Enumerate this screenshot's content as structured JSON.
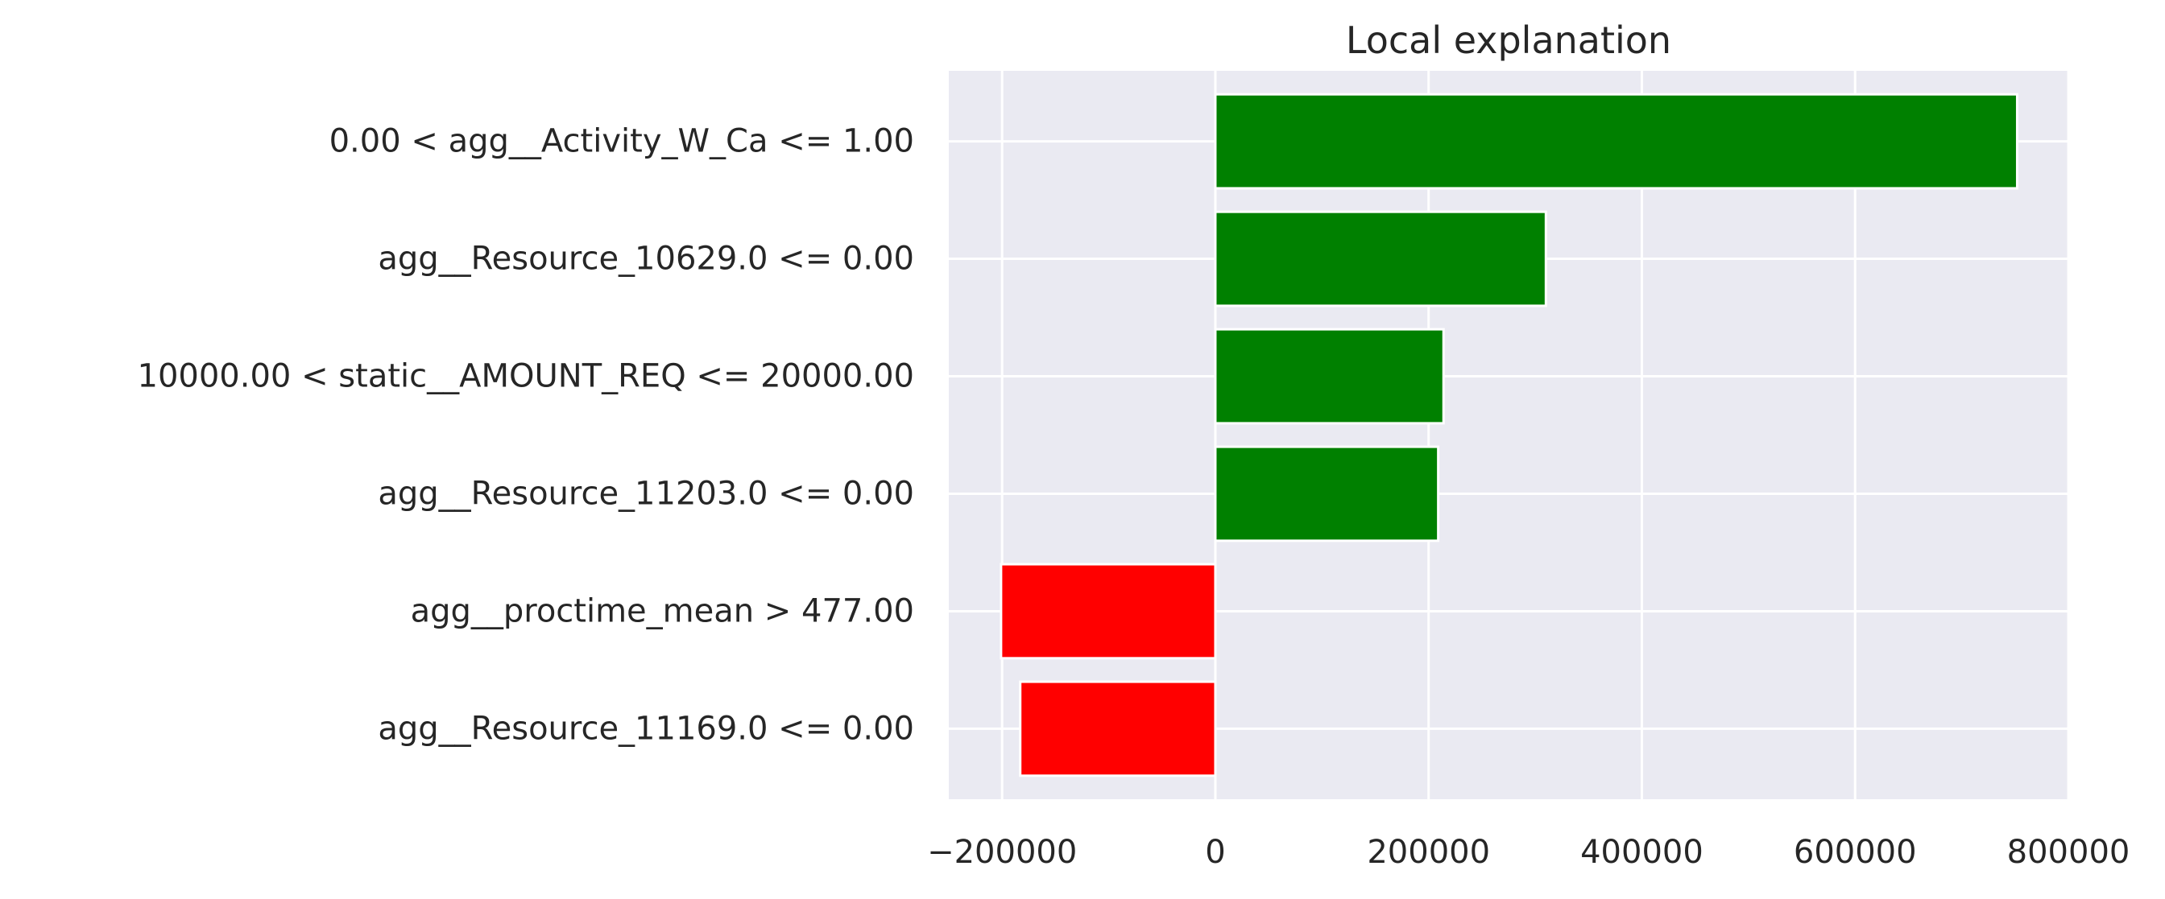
{
  "chart_data": {
    "type": "bar",
    "orientation": "horizontal",
    "title": "Local explanation",
    "xlabel": "",
    "ylabel": "",
    "categories": [
      "0.00 < agg__Activity_W_Ca <= 1.00",
      "agg__Resource_10629.0 <= 0.00",
      "10000.00 < static__AMOUNT_REQ <= 20000.00",
      "agg__Resource_11203.0 <= 0.00",
      "agg__proctime_mean > 477.00",
      "agg__Resource_11169.0 <= 0.00"
    ],
    "values": [
      752000,
      310000,
      214000,
      209000,
      -201000,
      -183000
    ],
    "xlim": [
      -250000,
      800000
    ],
    "xticks": [
      -200000,
      0,
      200000,
      400000,
      600000,
      800000
    ],
    "xtick_labels": [
      "−200000",
      "0",
      "200000",
      "400000",
      "600000",
      "800000"
    ],
    "grid": true,
    "legend": "none",
    "colors": {
      "positive": "#008000",
      "negative": "#ff0000",
      "plot_background": "#eaeaf2",
      "grid": "#ffffff",
      "text": "#262626"
    }
  }
}
